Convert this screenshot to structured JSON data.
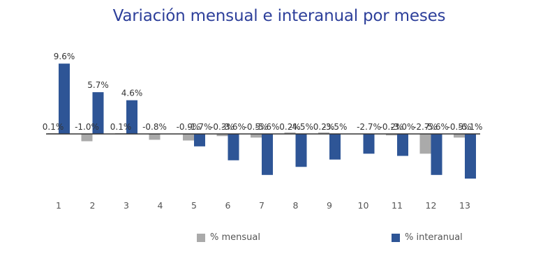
{
  "chart_data": {
    "type": "bar",
    "title": "Variación mensual e interanual por meses",
    "categories": [
      "1",
      "2",
      "3",
      "4",
      "5",
      "6",
      "7",
      "8",
      "9",
      "10",
      "11",
      "12",
      "13"
    ],
    "series": [
      {
        "name": "% mensual",
        "color": "#aaaaaa",
        "values": [
          0.1,
          -1.0,
          0.1,
          -0.8,
          -0.9,
          -0.3,
          -0.5,
          0.2,
          0.2,
          0,
          -0.2,
          -2.7,
          -0.5
        ],
        "labels": [
          "0.1%",
          "-1.0%",
          "0.1%",
          "-0.8%",
          "-0.9%",
          "-0.3%",
          "-0.5%",
          "0.2%",
          "0.2%",
          "",
          "-0.2%",
          "-2.7%",
          "-0.5%"
        ]
      },
      {
        "name": "% interanual",
        "color": "#2e5596",
        "values": [
          9.6,
          5.7,
          4.6,
          0,
          -1.7,
          -3.6,
          -5.6,
          -4.5,
          -3.5,
          -2.7,
          -3.0,
          -5.6,
          -6.1
        ],
        "labels": [
          "9.6%",
          "5.7%",
          "4.6%",
          "",
          "-1.7%",
          "-3.6%",
          "-5.6%",
          "-4.5%",
          "-3.5%",
          "-2.7%",
          "-3.0%",
          "-5.6%",
          "-6.1%"
        ]
      }
    ],
    "legend_position": "bottom",
    "grid": false
  }
}
